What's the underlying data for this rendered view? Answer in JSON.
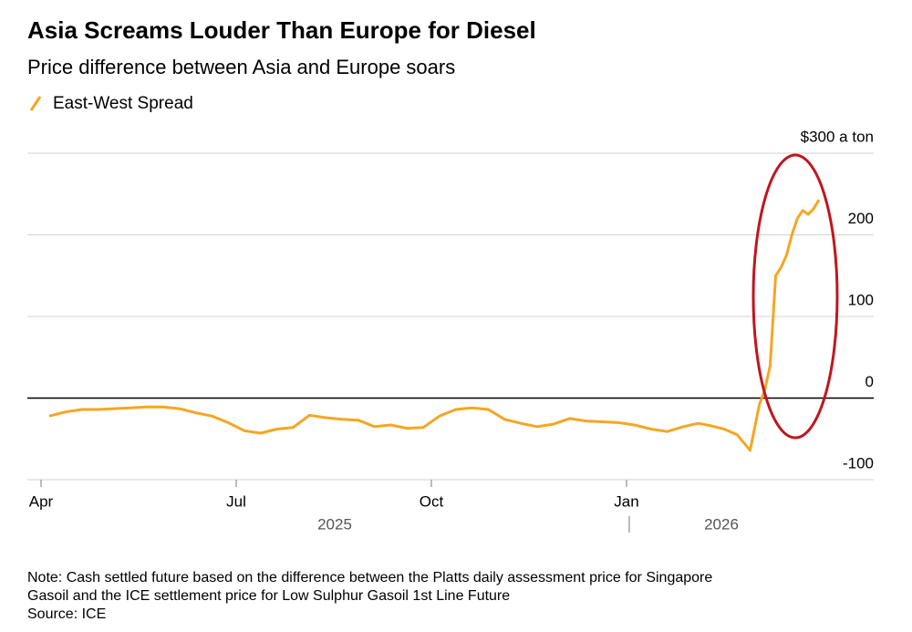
{
  "chart_data": {
    "type": "line",
    "title": "Asia Screams Louder Than Europe for Diesel",
    "subtitle": "Price difference between Asia and Europe soars",
    "x": [
      "2025-04",
      "2025-04",
      "2025-04",
      "2025-04",
      "2025-05",
      "2025-05",
      "2025-05",
      "2025-05",
      "2025-06",
      "2025-06",
      "2025-06",
      "2025-06",
      "2025-07",
      "2025-07",
      "2025-07",
      "2025-07",
      "2025-08",
      "2025-08",
      "2025-08",
      "2025-08",
      "2025-09",
      "2025-09",
      "2025-09",
      "2025-09",
      "2025-10",
      "2025-10",
      "2025-10",
      "2025-10",
      "2025-11",
      "2025-11",
      "2025-11",
      "2025-11",
      "2025-12",
      "2025-12",
      "2025-12",
      "2025-12",
      "2026-01",
      "2026-01",
      "2026-01",
      "2026-01",
      "2026-02",
      "2026-02",
      "2026-02",
      "2026-02",
      "2026-02",
      "2026-03",
      "2026-03",
      "2026-03",
      "2026-03",
      "2026-03",
      "2026-03",
      "2026-03",
      "2026-03",
      "2026-03",
      "2026-03",
      "2026-03",
      "2026-03"
    ],
    "series": [
      {
        "name": "East-West Spread",
        "color": "#f5a623",
        "values": [
          -22,
          -17,
          -14,
          -14,
          -13,
          -12,
          -11,
          -11,
          -13,
          -18,
          -22,
          -30,
          -40,
          -43,
          -38,
          -36,
          -21,
          -24,
          -26,
          -27,
          -35,
          -33,
          -37,
          -36,
          -22,
          -14,
          -12,
          -14,
          -26,
          -31,
          -35,
          -32,
          -25,
          -28,
          -29,
          -30,
          -33,
          -38,
          -41,
          -35,
          -31,
          -34,
          -38,
          -45,
          -64,
          -8,
          10,
          40,
          150,
          160,
          175,
          200,
          220,
          230,
          225,
          232,
          243
        ]
      }
    ],
    "xlim": [
      "2025-04",
      "2026-03"
    ],
    "xticks": [
      {
        "value": "2025-04",
        "label": "Apr"
      },
      {
        "value": "2025-07",
        "label": "Jul"
      },
      {
        "value": "2025-10",
        "label": "Oct"
      },
      {
        "value": "2026-01",
        "label": "Jan"
      }
    ],
    "year_labels": [
      "2025",
      "2026"
    ],
    "ylim": [
      -100,
      300
    ],
    "yticks": [
      {
        "value": 300,
        "label": "$300 a ton"
      },
      200,
      100,
      0,
      -100
    ],
    "grid": true,
    "note": [
      "Note: Cash settled future based on the difference between the Platts daily assessment price for Singapore",
      "Gasoil and the ICE settlement price for Low Sulphur Gasoil 1st Line Future"
    ],
    "source": "Source: ICE"
  }
}
